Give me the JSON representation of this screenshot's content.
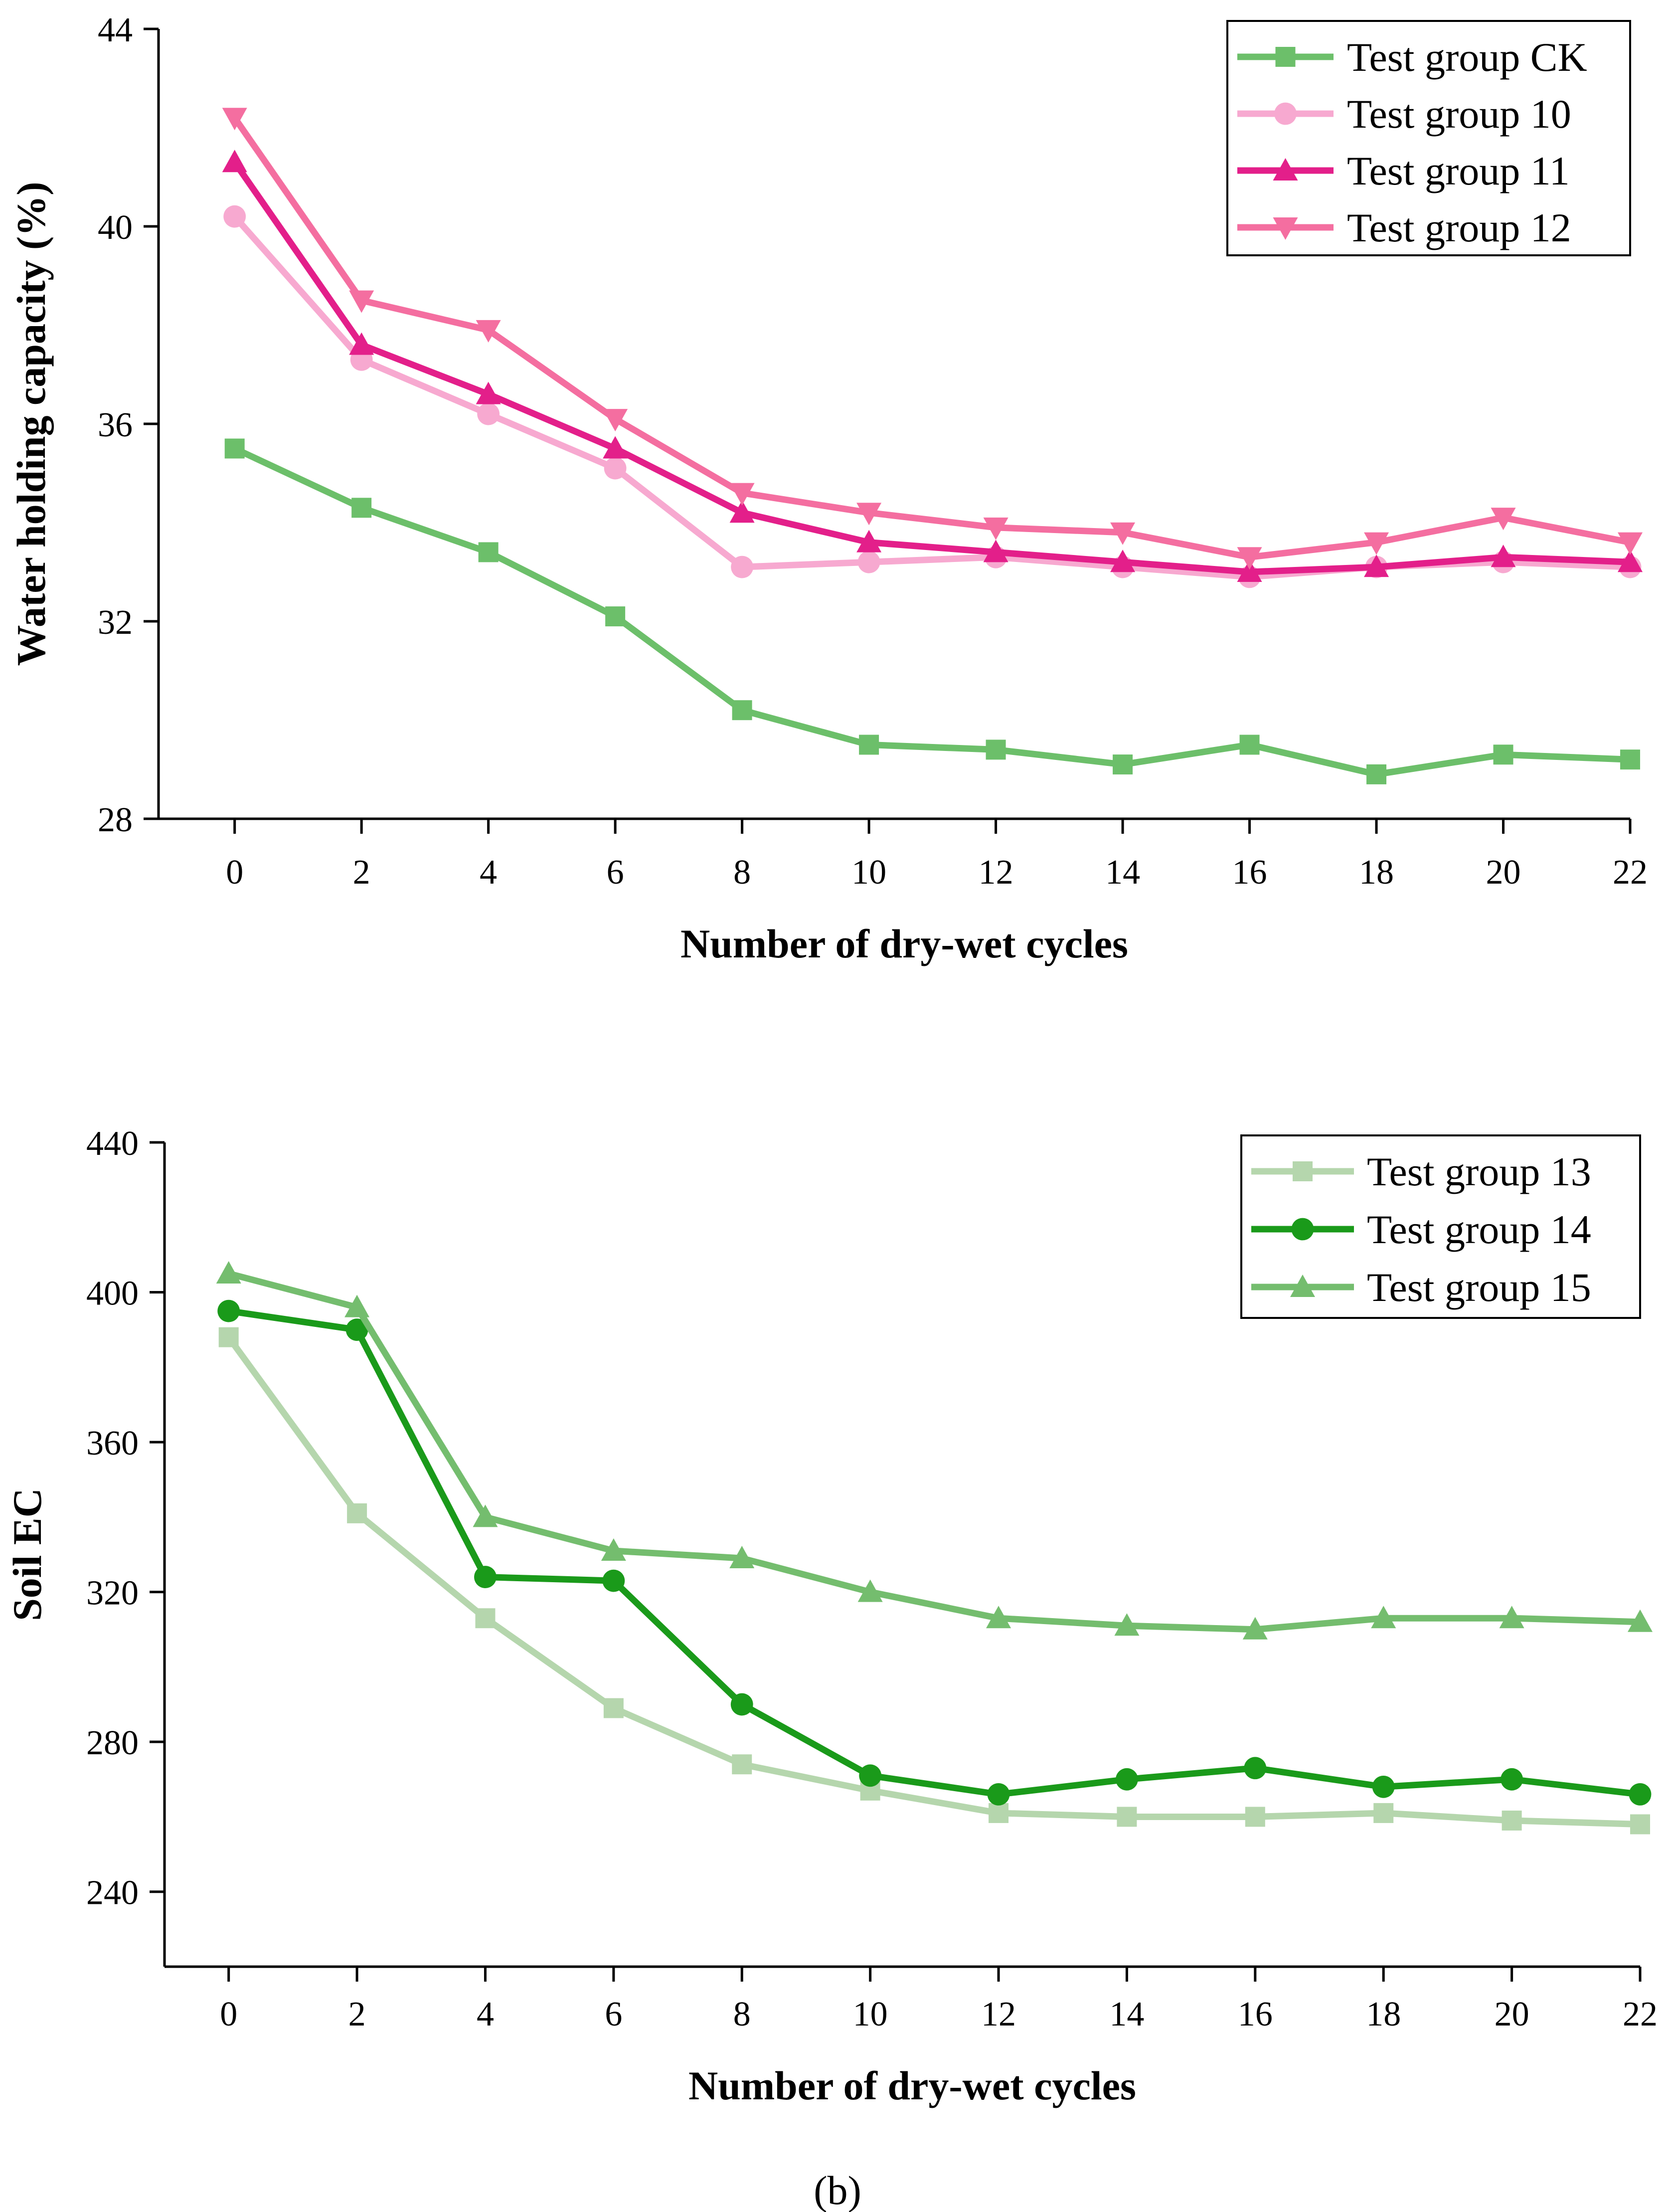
{
  "chart_data": [
    {
      "type": "line",
      "xlabel": "Number of dry-wet cycles",
      "ylabel": "Water holding capacity (%)",
      "xlim": [
        -1.2,
        22
      ],
      "ylim": [
        28,
        44
      ],
      "xticks": [
        0,
        2,
        4,
        6,
        8,
        10,
        12,
        14,
        16,
        18,
        20,
        22
      ],
      "yticks": [
        28,
        32,
        36,
        40,
        44
      ],
      "x": [
        0,
        2,
        4,
        6,
        8,
        10,
        12,
        14,
        16,
        18,
        20,
        22
      ],
      "legend_position": "top-right",
      "series": [
        {
          "name": "Test group CK",
          "color": "#6cbf6a",
          "marker": "square",
          "values": [
            35.5,
            34.3,
            33.4,
            32.1,
            30.2,
            29.5,
            29.4,
            29.1,
            29.5,
            28.9,
            29.3,
            29.2
          ]
        },
        {
          "name": "Test group 10",
          "color": "#f7a9d0",
          "marker": "circle",
          "values": [
            40.2,
            37.3,
            36.2,
            35.1,
            33.1,
            33.2,
            33.3,
            33.1,
            32.9,
            33.1,
            33.2,
            33.1
          ]
        },
        {
          "name": "Test group 11",
          "color": "#e31f8a",
          "marker": "triangle-up",
          "values": [
            41.3,
            37.6,
            36.6,
            35.5,
            34.2,
            33.6,
            33.4,
            33.2,
            33.0,
            33.1,
            33.3,
            33.2
          ]
        },
        {
          "name": "Test group 12",
          "color": "#f46ea0",
          "marker": "triangle-down",
          "values": [
            42.2,
            38.5,
            37.9,
            36.1,
            34.6,
            34.2,
            33.9,
            33.8,
            33.3,
            33.6,
            34.1,
            33.6
          ]
        }
      ]
    },
    {
      "type": "line",
      "xlabel": "Number of dry-wet cycles",
      "ylabel": "Soil EC",
      "xlim": [
        -1.0,
        22
      ],
      "ylim": [
        220,
        440
      ],
      "xticks": [
        0,
        2,
        4,
        6,
        8,
        10,
        12,
        14,
        16,
        18,
        20,
        22
      ],
      "yticks": [
        240,
        280,
        320,
        360,
        400,
        440
      ],
      "x": [
        0,
        2,
        4,
        6,
        8,
        10,
        12,
        14,
        16,
        18,
        20,
        22
      ],
      "legend_position": "top-right",
      "series": [
        {
          "name": "Test group 13",
          "color": "#b5d6ad",
          "marker": "square",
          "values": [
            388,
            341,
            313,
            289,
            274,
            267,
            261,
            260,
            260,
            261,
            259,
            258
          ]
        },
        {
          "name": "Test group 14",
          "color": "#1a9a1a",
          "marker": "circle",
          "values": [
            395,
            390,
            324,
            323,
            290,
            271,
            266,
            270,
            273,
            268,
            270,
            266
          ]
        },
        {
          "name": "Test group 15",
          "color": "#74bd6e",
          "marker": "triangle-up",
          "values": [
            405,
            396,
            340,
            331,
            329,
            320,
            313,
            311,
            310,
            313,
            313,
            312
          ]
        }
      ]
    }
  ],
  "caption": "(b)"
}
